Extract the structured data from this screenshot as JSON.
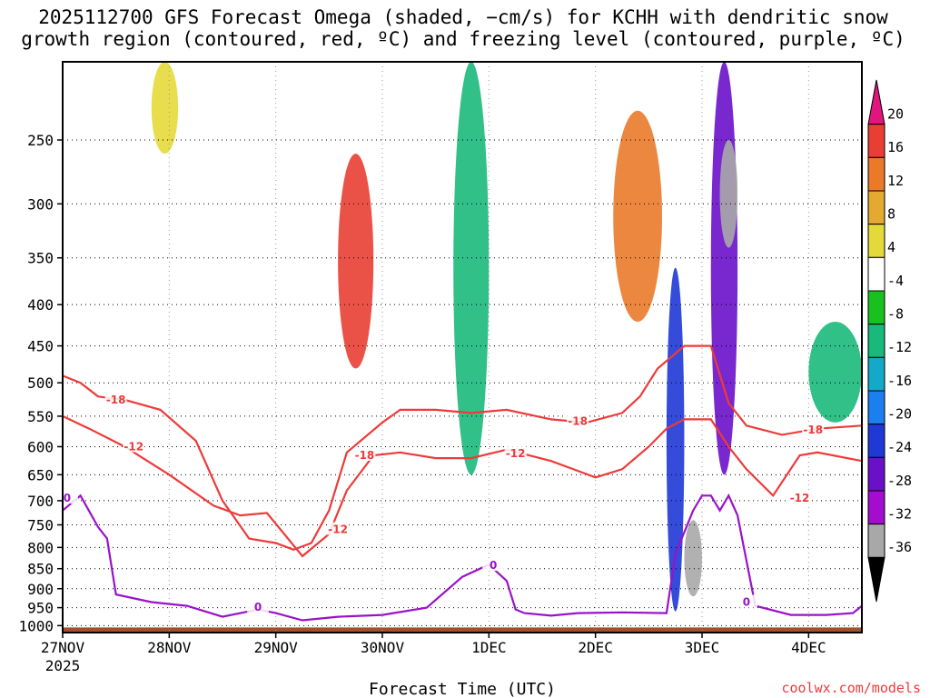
{
  "chart_data": {
    "type": "heatmap",
    "title_line1": "2025112700 GFS Forecast Omega (shaded, −cm/s) for KCHH with dendritic snow",
    "title_line2": "growth region (contoured, red, ºC) and freezing level (contoured, purple, ºC)",
    "xlabel": "Forecast Time (UTC)",
    "ylabel": "",
    "y_ticks": [
      250,
      300,
      350,
      400,
      450,
      500,
      550,
      600,
      650,
      700,
      750,
      800,
      850,
      900,
      950,
      1000
    ],
    "y_range_hpa": [
      1020,
      200
    ],
    "x_ticks": [
      "27NOV",
      "28NOV",
      "29NOV",
      "30NOV",
      "1DEC",
      "2DEC",
      "3DEC",
      "4DEC"
    ],
    "x_tick_sub": "2025",
    "x_range_hours": [
      0,
      180
    ],
    "colorbar_levels": [
      20,
      16,
      12,
      8,
      4,
      -4,
      -8,
      -12,
      -16,
      -20,
      -24,
      -28,
      -32,
      -36
    ],
    "colorbar_colors": [
      "#e0157e",
      "#e93f33",
      "#ea7a2a",
      "#e4a930",
      "#e4d93a",
      "#ffffff",
      "#19c11e",
      "#19b97b",
      "#14a9c9",
      "#1b7ff0",
      "#1f39d6",
      "#6a10c9",
      "#a40dd0",
      "#a8a8a8",
      "#000000"
    ],
    "contours": [
      {
        "label": "-18",
        "color": "#ee3a3a",
        "kind": "dendritic snow growth region"
      },
      {
        "label": "-12",
        "color": "#ee3a3a",
        "kind": "dendritic snow growth region"
      },
      {
        "label": "0",
        "color": "#9a12c8",
        "kind": "freezing level"
      }
    ],
    "freezing_level_hpa": {
      "hours": [
        0,
        4,
        8,
        10,
        12,
        20,
        28,
        36,
        44,
        48,
        54,
        62,
        72,
        82,
        90,
        96,
        100,
        102,
        104,
        110,
        116,
        126,
        136,
        138,
        142,
        144,
        146,
        148,
        150,
        152,
        156,
        164,
        172,
        178,
        180
      ],
      "hpa": [
        720,
        690,
        755,
        780,
        915,
        935,
        945,
        975,
        955,
        965,
        985,
        975,
        970,
        950,
        870,
        840,
        880,
        955,
        965,
        972,
        965,
        963,
        965,
        815,
        720,
        690,
        690,
        720,
        690,
        730,
        945,
        970,
        970,
        965,
        945
      ]
    },
    "m12_contour_hpa": {
      "hours": [
        0,
        6,
        14,
        24,
        34,
        40,
        46,
        54,
        60,
        64,
        70,
        76,
        84,
        92,
        100,
        110,
        120,
        126,
        132,
        136,
        140,
        146,
        150,
        154,
        160,
        166,
        170,
        180
      ],
      "hpa": [
        550,
        570,
        600,
        650,
        710,
        730,
        725,
        820,
        770,
        680,
        615,
        610,
        620,
        620,
        605,
        625,
        655,
        640,
        600,
        570,
        555,
        555,
        600,
        640,
        690,
        615,
        610,
        625
      ]
    },
    "m18_contour_hpa": {
      "hours": [
        0,
        4,
        8,
        14,
        22,
        30,
        36,
        42,
        48,
        52,
        56,
        60,
        64,
        72,
        76,
        84,
        92,
        100,
        110,
        118,
        126,
        130,
        134,
        140,
        146,
        150,
        154,
        162,
        170,
        180
      ],
      "hpa": [
        490,
        500,
        520,
        525,
        540,
        590,
        700,
        780,
        790,
        805,
        790,
        720,
        610,
        560,
        540,
        540,
        545,
        540,
        555,
        560,
        545,
        520,
        480,
        450,
        450,
        530,
        565,
        580,
        570,
        565
      ]
    },
    "omega_features": [
      {
        "hour_start": 62,
        "hour_end": 70,
        "hpa_top": 260,
        "hpa_bottom": 480,
        "value": 16
      },
      {
        "hour_start": 124,
        "hour_end": 135,
        "hpa_top": 230,
        "hpa_bottom": 420,
        "value": 14
      },
      {
        "hour_start": 136,
        "hour_end": 140,
        "hpa_top": 360,
        "hpa_bottom": 960,
        "value": -22
      },
      {
        "hour_start": 140,
        "hour_end": 144,
        "hpa_top": 740,
        "hpa_bottom": 920,
        "value": -36
      },
      {
        "hour_start": 146,
        "hour_end": 152,
        "hpa_top": 200,
        "hpa_bottom": 650,
        "value": -28
      },
      {
        "hour_start": 148,
        "hour_end": 152,
        "hpa_top": 250,
        "hpa_bottom": 340,
        "value": -36
      },
      {
        "hour_start": 20,
        "hour_end": 26,
        "hpa_top": 200,
        "hpa_bottom": 260,
        "value": 6
      },
      {
        "hour_start": 88,
        "hour_end": 96,
        "hpa_top": 200,
        "hpa_bottom": 650,
        "value": -10
      },
      {
        "hour_start": 168,
        "hour_end": 180,
        "hpa_top": 420,
        "hpa_bottom": 560,
        "value": -10
      }
    ],
    "terrain": "brown ground shading near 1000 hPa"
  },
  "footer": {
    "xlabel": "Forecast Time (UTC)",
    "credit": "coolwx.com/models"
  }
}
